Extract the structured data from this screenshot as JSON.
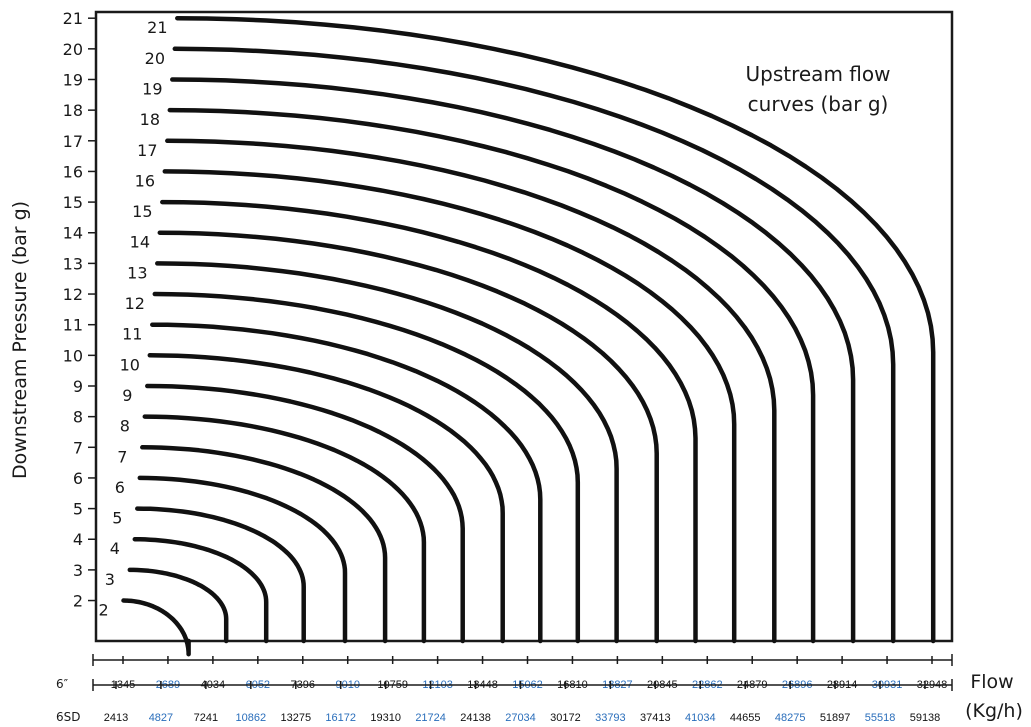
{
  "chart_data": {
    "type": "line",
    "ylabel": "Downstream Pressure (bar g)",
    "xlabel_line1": "Flow",
    "xlabel_line2": "(Kg/h)",
    "annotation_line1": "Upstream flow",
    "annotation_line2": "curves (bar g)",
    "y_ticks": [
      2,
      3,
      4,
      5,
      6,
      7,
      8,
      9,
      10,
      11,
      12,
      13,
      14,
      15,
      16,
      17,
      18,
      19,
      20,
      21
    ],
    "ylim": [
      0,
      21
    ],
    "flow_rows": [
      {
        "label": "6″",
        "values": [
          {
            "v": "1345",
            "c": "#111111"
          },
          {
            "v": "2689",
            "c": "#2a6ebb"
          },
          {
            "v": "4034",
            "c": "#111111"
          },
          {
            "v": "6052",
            "c": "#2a6ebb"
          },
          {
            "v": "7396",
            "c": "#111111"
          },
          {
            "v": "9010",
            "c": "#2a6ebb"
          },
          {
            "v": "10759",
            "c": "#111111"
          },
          {
            "v": "12103",
            "c": "#2a6ebb"
          },
          {
            "v": "13448",
            "c": "#111111"
          },
          {
            "v": "15062",
            "c": "#2a6ebb"
          },
          {
            "v": "16810",
            "c": "#111111"
          },
          {
            "v": "18827",
            "c": "#2a6ebb"
          },
          {
            "v": "20845",
            "c": "#111111"
          },
          {
            "v": "22862",
            "c": "#2a6ebb"
          },
          {
            "v": "24879",
            "c": "#111111"
          },
          {
            "v": "26896",
            "c": "#2a6ebb"
          },
          {
            "v": "28914",
            "c": "#111111"
          },
          {
            "v": "30931",
            "c": "#2a6ebb"
          },
          {
            "v": "32948",
            "c": "#111111"
          }
        ]
      },
      {
        "label": "6SD",
        "values": [
          {
            "v": "2413",
            "c": "#111111"
          },
          {
            "v": "4827",
            "c": "#2a6ebb"
          },
          {
            "v": "7241",
            "c": "#111111"
          },
          {
            "v": "10862",
            "c": "#2a6ebb"
          },
          {
            "v": "13275",
            "c": "#111111"
          },
          {
            "v": "16172",
            "c": "#2a6ebb"
          },
          {
            "v": "19310",
            "c": "#111111"
          },
          {
            "v": "21724",
            "c": "#2a6ebb"
          },
          {
            "v": "24138",
            "c": "#111111"
          },
          {
            "v": "27034",
            "c": "#2a6ebb"
          },
          {
            "v": "30172",
            "c": "#111111"
          },
          {
            "v": "33793",
            "c": "#2a6ebb"
          },
          {
            "v": "37413",
            "c": "#111111"
          },
          {
            "v": "41034",
            "c": "#2a6ebb"
          },
          {
            "v": "44655",
            "c": "#111111"
          },
          {
            "v": "48275",
            "c": "#2a6ebb"
          },
          {
            "v": "51897",
            "c": "#111111"
          },
          {
            "v": "55518",
            "c": "#2a6ebb"
          },
          {
            "v": "59138",
            "c": "#111111"
          }
        ]
      }
    ],
    "series": [
      {
        "name": "2",
        "x_start": 1100,
        "y_start": 2,
        "x_end": 3700,
        "y_end": 0.25
      },
      {
        "name": "3",
        "x_start": 1350,
        "y_start": 3,
        "x_end": 5200,
        "y_end": 1.4
      },
      {
        "name": "4",
        "x_start": 1550,
        "y_start": 4,
        "x_end": 6800,
        "y_end": 1.95
      },
      {
        "name": "5",
        "x_start": 1650,
        "y_start": 5,
        "x_end": 8300,
        "y_end": 2.45
      },
      {
        "name": "6",
        "x_start": 1750,
        "y_start": 6,
        "x_end": 9950,
        "y_end": 2.9
      },
      {
        "name": "7",
        "x_start": 1850,
        "y_start": 7,
        "x_end": 11550,
        "y_end": 3.4
      },
      {
        "name": "8",
        "x_start": 1950,
        "y_start": 8,
        "x_end": 13100,
        "y_end": 3.9
      },
      {
        "name": "9",
        "x_start": 2050,
        "y_start": 9,
        "x_end": 14650,
        "y_end": 4.35
      },
      {
        "name": "10",
        "x_start": 2150,
        "y_start": 10,
        "x_end": 16250,
        "y_end": 4.85
      },
      {
        "name": "11",
        "x_start": 2250,
        "y_start": 11,
        "x_end": 17750,
        "y_end": 5.3
      },
      {
        "name": "12",
        "x_start": 2350,
        "y_start": 12,
        "x_end": 19250,
        "y_end": 5.85
      },
      {
        "name": "13",
        "x_start": 2450,
        "y_start": 13,
        "x_end": 20800,
        "y_end": 6.3
      },
      {
        "name": "14",
        "x_start": 2550,
        "y_start": 14,
        "x_end": 22400,
        "y_end": 6.8
      },
      {
        "name": "15",
        "x_start": 2650,
        "y_start": 15,
        "x_end": 23950,
        "y_end": 7.3
      },
      {
        "name": "16",
        "x_start": 2750,
        "y_start": 16,
        "x_end": 25500,
        "y_end": 7.75
      },
      {
        "name": "17",
        "x_start": 2850,
        "y_start": 17,
        "x_end": 27100,
        "y_end": 8.2
      },
      {
        "name": "18",
        "x_start": 2950,
        "y_start": 18,
        "x_end": 28650,
        "y_end": 8.7
      },
      {
        "name": "19",
        "x_start": 3050,
        "y_start": 19,
        "x_end": 30250,
        "y_end": 9.2
      },
      {
        "name": "20",
        "x_start": 3150,
        "y_start": 20,
        "x_end": 31850,
        "y_end": 9.7
      },
      {
        "name": "21",
        "x_start": 3250,
        "y_start": 21,
        "x_end": 33450,
        "y_end": 10.1
      }
    ]
  }
}
